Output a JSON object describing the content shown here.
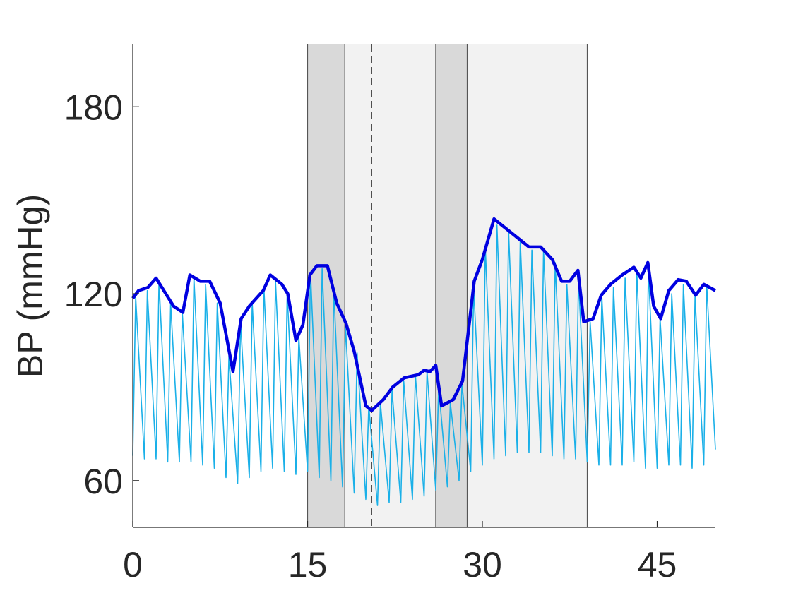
{
  "chart_data": {
    "type": "line",
    "y_label": "BP (mmHg)",
    "xlim": [
      0,
      50
    ],
    "ylim": [
      45,
      200
    ],
    "xticks": [
      0,
      15,
      30,
      45
    ],
    "yticks": [
      60,
      120,
      180
    ],
    "regions": [
      {
        "start": 15,
        "end": 18.2,
        "color": "#d9d9d9"
      },
      {
        "start": 18.2,
        "end": 26,
        "color": "#f2f2f2"
      },
      {
        "start": 26,
        "end": 28.7,
        "color": "#d9d9d9"
      },
      {
        "start": 28.7,
        "end": 39,
        "color": "#f2f2f2"
      }
    ],
    "markers": [
      {
        "x": 20.5,
        "style": "dashed"
      }
    ],
    "series": [
      {
        "color": "#1ab0e8",
        "width": 1.6,
        "x": [
          0,
          0.25,
          1,
          1.25,
          2,
          2.25,
          3,
          3.25,
          4,
          4.25,
          5,
          5.25,
          6,
          6.25,
          7,
          7.25,
          8,
          8.25,
          9,
          9.25,
          10,
          10.25,
          11,
          11.25,
          12,
          12.25,
          13,
          13.25,
          14,
          14.25,
          15,
          15.25,
          16,
          16.25,
          17,
          17.25,
          18,
          18.25,
          19,
          19.25,
          20,
          20.25,
          21,
          21.25,
          22,
          22.25,
          23,
          23.25,
          24,
          24.25,
          25,
          25.25,
          26,
          26.25,
          27,
          27.25,
          28,
          28.25,
          29,
          29.25,
          30,
          30.25,
          31,
          31.25,
          32,
          32.25,
          33,
          33.25,
          34,
          34.25,
          35,
          35.25,
          36,
          36.25,
          37,
          37.25,
          38,
          38.25,
          39,
          39.25,
          40,
          40.25,
          41,
          41.25,
          42,
          42.25,
          43,
          43.25,
          44,
          44.25,
          45,
          45.25,
          46,
          46.25,
          47,
          47.25,
          48,
          48.25,
          49,
          49.25,
          50
        ],
        "values": [
          68,
          119,
          67,
          121,
          67,
          124,
          66,
          117,
          66,
          114,
          66,
          125,
          65,
          123,
          64,
          117,
          61,
          100,
          59,
          111,
          61,
          117,
          63,
          122,
          64,
          124,
          63,
          120,
          62,
          106,
          63,
          127,
          61,
          128,
          60,
          121,
          58,
          110,
          56,
          101,
          54,
          84,
          52,
          85,
          53,
          89,
          53,
          92,
          54,
          94,
          55,
          95,
          57,
          90,
          58,
          85,
          60,
          91,
          63,
          122,
          65,
          135,
          67,
          142,
          68,
          140,
          69,
          137,
          69,
          134,
          69,
          134,
          68,
          130,
          67,
          123,
          67,
          125,
          66,
          111,
          65,
          119,
          65,
          122,
          65,
          125,
          66,
          127,
          64,
          128,
          64,
          112,
          65,
          120,
          65,
          123,
          64,
          119,
          65,
          123,
          70
        ]
      },
      {
        "color": "#0000e0",
        "width": 4.5,
        "x": [
          0,
          0.5,
          1.3,
          2,
          3.5,
          4.3,
          4.9,
          5.8,
          6.6,
          7.5,
          8.6,
          9.3,
          10,
          11.2,
          11.8,
          12.8,
          13.3,
          14,
          14.6,
          15.2,
          15.8,
          16.7,
          17.5,
          18.3,
          19,
          20,
          20.5,
          21.5,
          22.3,
          23.3,
          24.5,
          25,
          25.5,
          26,
          26.5,
          27.5,
          28.3,
          28.8,
          29.3,
          30,
          31,
          32,
          33,
          34,
          35,
          36,
          36.8,
          37.5,
          38.2,
          38.7,
          39.5,
          40.2,
          41,
          42,
          43,
          43.6,
          44.2,
          44.7,
          45.3,
          46,
          46.8,
          47.5,
          48.3,
          49,
          50
        ],
        "values": [
          118.5,
          121,
          122,
          125,
          116,
          114,
          126,
          124,
          124,
          117,
          95,
          112,
          116,
          121,
          126,
          123,
          120,
          105,
          110,
          126,
          129,
          129,
          117,
          110.5,
          101.5,
          84,
          82.5,
          86,
          90,
          93,
          94,
          95.4,
          95,
          97,
          84,
          86,
          92,
          108,
          124,
          131,
          144,
          141,
          138,
          135,
          135,
          131,
          124,
          124,
          127.5,
          111,
          112,
          119.5,
          123,
          126,
          128.5,
          125,
          130,
          116,
          112,
          121,
          124.5,
          124,
          119.5,
          123,
          121
        ]
      }
    ]
  }
}
